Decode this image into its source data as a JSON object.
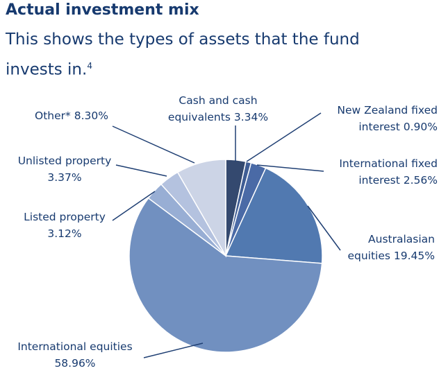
{
  "heading": {
    "title": "Actual investment mix",
    "subtitle": "This shows the types of assets that the fund invests in.",
    "footnote_mark": "4"
  },
  "colors": {
    "text": "#173a6f",
    "leader": "#1f3f73"
  },
  "chart_data": {
    "type": "pie",
    "title": "Actual investment mix",
    "unit": "%",
    "legend": "none",
    "start_angle_deg": 0,
    "direction": "clockwise",
    "slices": [
      {
        "name": "Cash and cash equivalents",
        "label_lines": [
          "Cash and cash",
          "equivalents 3.34%"
        ],
        "value": 3.34,
        "color": "#34496f"
      },
      {
        "name": "New Zealand fixed interest",
        "label_lines": [
          "New Zealand fixed",
          "interest 0.90%"
        ],
        "value": 0.9,
        "color": "#3f5d94"
      },
      {
        "name": "International fixed interest",
        "label_lines": [
          "International fixed",
          "interest 2.56%"
        ],
        "value": 2.56,
        "color": "#4a6aa6"
      },
      {
        "name": "Australasian equities",
        "label_lines": [
          "Australasian",
          "equities 19.45%"
        ],
        "value": 19.45,
        "color": "#5179b0"
      },
      {
        "name": "International equities",
        "label_lines": [
          "International equities",
          "58.96%"
        ],
        "value": 58.96,
        "color": "#7190c0"
      },
      {
        "name": "Listed property",
        "label_lines": [
          "Listed property",
          "3.12%"
        ],
        "value": 3.12,
        "color": "#98aed4"
      },
      {
        "name": "Unlisted property",
        "label_lines": [
          "Unlisted property",
          "3.37%"
        ],
        "value": 3.37,
        "color": "#b4c2df"
      },
      {
        "name": "Other*",
        "label_lines": [
          "Other* 8.30%"
        ],
        "value": 8.3,
        "color": "#ccd4e6"
      }
    ]
  }
}
